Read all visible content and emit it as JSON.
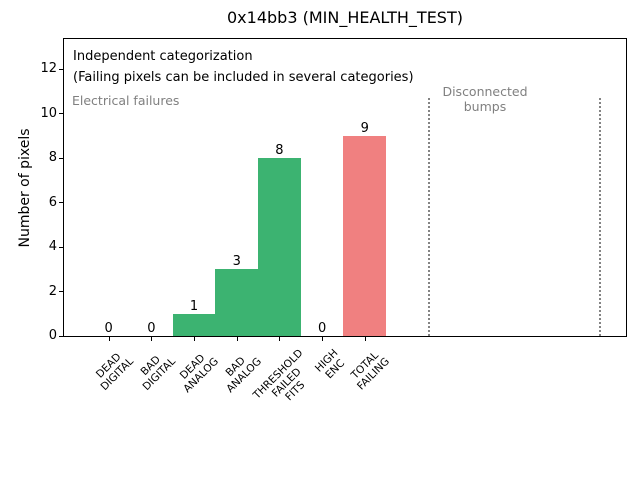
{
  "figure": {
    "title": "0x14bb3 (MIN_HEALTH_TEST)",
    "background_color": "#ffffff"
  },
  "annotations": {
    "independent_line1": "Independent categorization",
    "independent_line2": "(Failing pixels can be included in several categories)",
    "electrical_group_label": "Electrical failures",
    "disconnected_group_label": "Disconnected\nbumps"
  },
  "colors": {
    "bar_green": "#3cb371",
    "bar_red": "#f08080",
    "muted_text": "#808080",
    "divider": "#848484",
    "axis": "#000000",
    "background": "#ffffff"
  },
  "chart_data": {
    "type": "bar",
    "title": "0x14bb3 (MIN_HEALTH_TEST)",
    "xlabel": "",
    "ylabel": "Number of pixels",
    "categories": [
      [
        "DEAD",
        "DIGITAL"
      ],
      [
        "BAD",
        "DIGITAL"
      ],
      [
        "DEAD",
        "ANALOG"
      ],
      [
        "BAD",
        "ANALOG"
      ],
      [
        "THRESHOLD",
        "FAILED",
        "FITS"
      ],
      [
        "HIGH",
        "ENC"
      ],
      [
        "TOTAL",
        "FAILING"
      ]
    ],
    "values": [
      0,
      0,
      1,
      3,
      8,
      0,
      9
    ],
    "value_labels": [
      "0",
      "0",
      "1",
      "3",
      "8",
      "0",
      "9"
    ],
    "bar_colors": [
      "#3cb371",
      "#3cb371",
      "#3cb371",
      "#3cb371",
      "#3cb371",
      "#3cb371",
      "#f08080"
    ],
    "bar_width_slots": 1.0,
    "yticks": [
      0,
      2,
      4,
      6,
      8,
      10,
      12
    ],
    "ylim": [
      0,
      13.4
    ],
    "xlim_slots": [
      -1.07,
      12.12
    ],
    "group_dividers_slots": [
      7.5,
      11.5
    ],
    "divider_height_fraction": 0.8,
    "grid": false,
    "legend": null,
    "groups": [
      {
        "label": "Electrical failures",
        "color": "#808080"
      },
      {
        "label": "Disconnected bumps",
        "color": "#808080"
      }
    ]
  }
}
